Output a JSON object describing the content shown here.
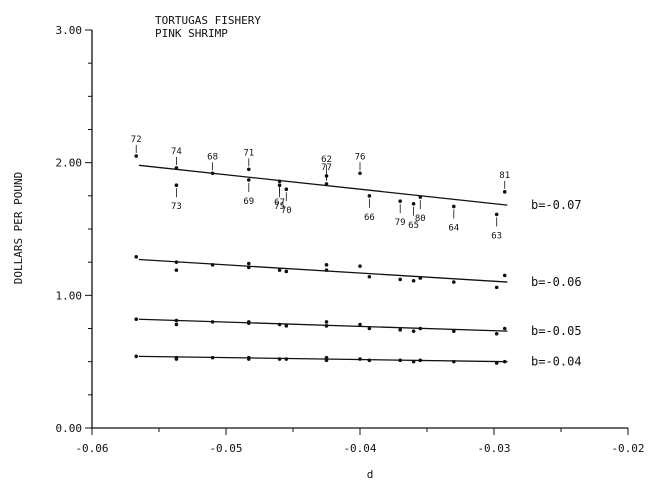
{
  "chart_data": {
    "type": "scatter",
    "title": "TORTUGAS FISHERY",
    "subtitle": "PINK SHRIMP",
    "xlabel": "d",
    "ylabel": "DOLLARS PER POUND",
    "xlim": [
      -0.06,
      -0.02
    ],
    "ylim": [
      0.0,
      3.0
    ],
    "x_ticks": [
      -0.06,
      -0.05,
      -0.04,
      -0.03,
      -0.02
    ],
    "x_tick_labels": [
      "-0.06",
      "-0.05",
      "-0.04",
      "-0.03",
      "-0.02"
    ],
    "y_ticks": [
      0.0,
      1.0,
      2.0,
      3.0
    ],
    "y_tick_labels": [
      "0.00",
      "1.00",
      "2.00",
      "3.00"
    ],
    "y_minor_step": 0.25,
    "x_minor_step": 0.005,
    "grid": false,
    "series": [
      {
        "name": "b=-0.07",
        "line": [
          [
            -0.0565,
            1.98
          ],
          [
            -0.029,
            1.68
          ]
        ],
        "points": [
          {
            "x": -0.0567,
            "y": 2.05,
            "label": "72"
          },
          {
            "x": -0.0537,
            "y": 1.96,
            "label": "74"
          },
          {
            "x": -0.0537,
            "y": 1.83,
            "label": "73"
          },
          {
            "x": -0.051,
            "y": 1.92,
            "label": "68"
          },
          {
            "x": -0.0483,
            "y": 1.95,
            "label": "71"
          },
          {
            "x": -0.0483,
            "y": 1.87,
            "label": "69"
          },
          {
            "x": -0.046,
            "y": 1.86,
            "label": "67"
          },
          {
            "x": -0.046,
            "y": 1.83,
            "label": "75"
          },
          {
            "x": -0.0455,
            "y": 1.8,
            "label": "70"
          },
          {
            "x": -0.0425,
            "y": 1.9,
            "label": "62"
          },
          {
            "x": -0.0425,
            "y": 1.84,
            "label": "77"
          },
          {
            "x": -0.04,
            "y": 1.92,
            "label": "76"
          },
          {
            "x": -0.0393,
            "y": 1.75,
            "label": "66"
          },
          {
            "x": -0.037,
            "y": 1.71,
            "label": "79"
          },
          {
            "x": -0.036,
            "y": 1.69,
            "label": "65"
          },
          {
            "x": -0.0355,
            "y": 1.74,
            "label": "80"
          },
          {
            "x": -0.033,
            "y": 1.67,
            "label": "64"
          },
          {
            "x": -0.0298,
            "y": 1.61,
            "label": "63"
          },
          {
            "x": -0.0292,
            "y": 1.78,
            "label": "81"
          }
        ]
      },
      {
        "name": "b=-0.06",
        "line": [
          [
            -0.0565,
            1.27
          ],
          [
            -0.029,
            1.1
          ]
        ],
        "points": [
          {
            "x": -0.0567,
            "y": 1.29
          },
          {
            "x": -0.0537,
            "y": 1.25
          },
          {
            "x": -0.0537,
            "y": 1.19
          },
          {
            "x": -0.051,
            "y": 1.23
          },
          {
            "x": -0.0483,
            "y": 1.24
          },
          {
            "x": -0.0483,
            "y": 1.21
          },
          {
            "x": -0.046,
            "y": 1.19
          },
          {
            "x": -0.0455,
            "y": 1.18
          },
          {
            "x": -0.0425,
            "y": 1.23
          },
          {
            "x": -0.0425,
            "y": 1.19
          },
          {
            "x": -0.04,
            "y": 1.22
          },
          {
            "x": -0.0393,
            "y": 1.14
          },
          {
            "x": -0.037,
            "y": 1.12
          },
          {
            "x": -0.036,
            "y": 1.11
          },
          {
            "x": -0.0355,
            "y": 1.13
          },
          {
            "x": -0.033,
            "y": 1.1
          },
          {
            "x": -0.0298,
            "y": 1.06
          },
          {
            "x": -0.0292,
            "y": 1.15
          }
        ]
      },
      {
        "name": "b=-0.05",
        "line": [
          [
            -0.0565,
            0.82
          ],
          [
            -0.029,
            0.73
          ]
        ],
        "points": [
          {
            "x": -0.0567,
            "y": 0.82
          },
          {
            "x": -0.0537,
            "y": 0.81
          },
          {
            "x": -0.0537,
            "y": 0.78
          },
          {
            "x": -0.051,
            "y": 0.8
          },
          {
            "x": -0.0483,
            "y": 0.8
          },
          {
            "x": -0.0483,
            "y": 0.79
          },
          {
            "x": -0.046,
            "y": 0.78
          },
          {
            "x": -0.0455,
            "y": 0.77
          },
          {
            "x": -0.0425,
            "y": 0.8
          },
          {
            "x": -0.0425,
            "y": 0.77
          },
          {
            "x": -0.04,
            "y": 0.78
          },
          {
            "x": -0.0393,
            "y": 0.75
          },
          {
            "x": -0.037,
            "y": 0.74
          },
          {
            "x": -0.036,
            "y": 0.73
          },
          {
            "x": -0.0355,
            "y": 0.75
          },
          {
            "x": -0.033,
            "y": 0.73
          },
          {
            "x": -0.0298,
            "y": 0.71
          },
          {
            "x": -0.0292,
            "y": 0.75
          }
        ]
      },
      {
        "name": "b=-0.04",
        "line": [
          [
            -0.0565,
            0.54
          ],
          [
            -0.029,
            0.5
          ]
        ],
        "points": [
          {
            "x": -0.0567,
            "y": 0.54
          },
          {
            "x": -0.0537,
            "y": 0.53
          },
          {
            "x": -0.0537,
            "y": 0.52
          },
          {
            "x": -0.051,
            "y": 0.53
          },
          {
            "x": -0.0483,
            "y": 0.53
          },
          {
            "x": -0.0483,
            "y": 0.52
          },
          {
            "x": -0.046,
            "y": 0.52
          },
          {
            "x": -0.0455,
            "y": 0.52
          },
          {
            "x": -0.0425,
            "y": 0.53
          },
          {
            "x": -0.0425,
            "y": 0.51
          },
          {
            "x": -0.04,
            "y": 0.52
          },
          {
            "x": -0.0393,
            "y": 0.51
          },
          {
            "x": -0.037,
            "y": 0.51
          },
          {
            "x": -0.036,
            "y": 0.5
          },
          {
            "x": -0.0355,
            "y": 0.51
          },
          {
            "x": -0.033,
            "y": 0.5
          },
          {
            "x": -0.0298,
            "y": 0.49
          },
          {
            "x": -0.0292,
            "y": 0.5
          }
        ]
      }
    ]
  }
}
